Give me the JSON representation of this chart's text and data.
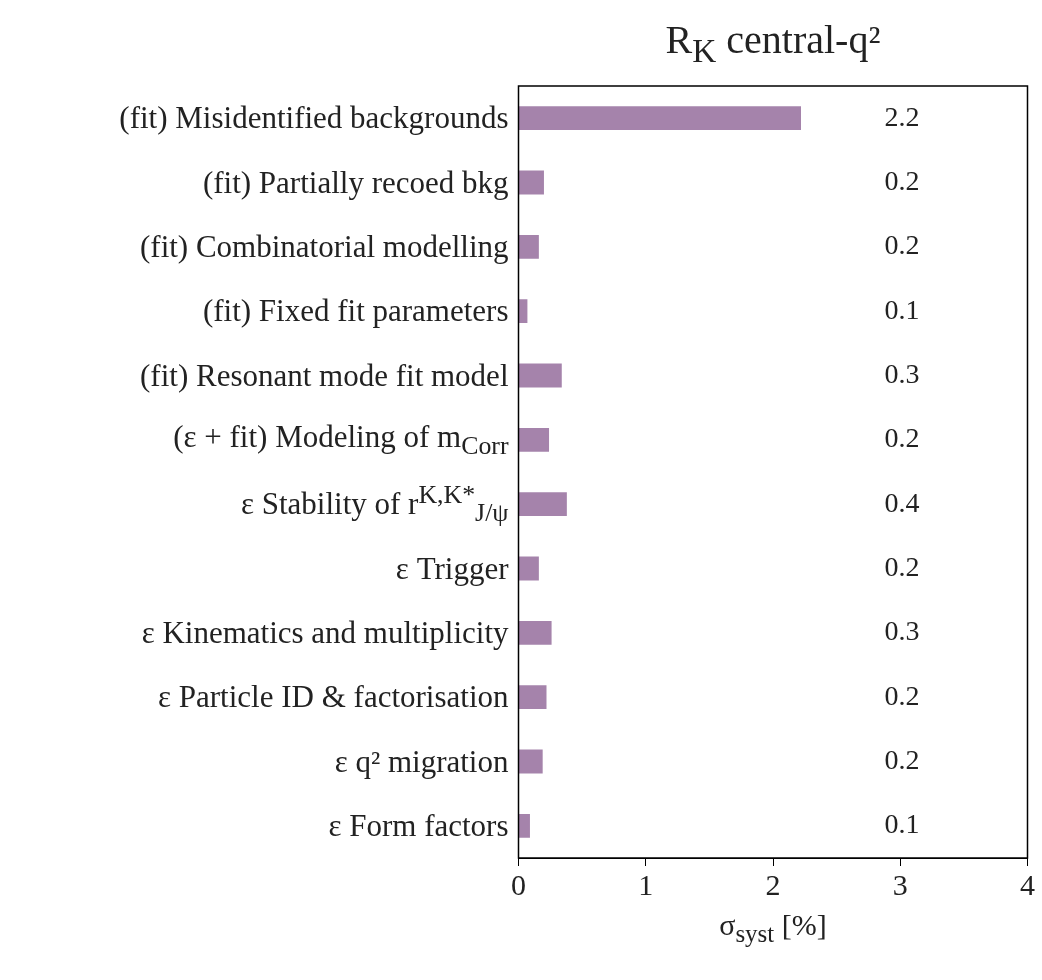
{
  "chart_data": {
    "type": "bar",
    "orientation": "horizontal",
    "title": "R$_{K}$ central-q²",
    "xlabel": "σ$_{syst}$ [%]",
    "categories": [
      "(fit) Misidentified backgrounds",
      "(fit) Partially recoed bkg",
      "(fit) Combinatorial modelling",
      "(fit) Fixed fit parameters",
      "(fit) Resonant mode fit model",
      "(ε + fit) Modeling of m$_{Corr}$",
      "ε Stability of r$^{K,K*}$$_{J/ψ}$",
      "ε Trigger",
      "ε Kinematics and multiplicity",
      "ε Particle ID & factorisation",
      "ε q² migration",
      "ε Form factors"
    ],
    "values": [
      2.22,
      0.2,
      0.16,
      0.07,
      0.34,
      0.24,
      0.38,
      0.16,
      0.26,
      0.22,
      0.19,
      0.09
    ],
    "value_labels": [
      "2.2",
      "0.2",
      "0.2",
      "0.1",
      "0.3",
      "0.2",
      "0.4",
      "0.2",
      "0.3",
      "0.2",
      "0.2",
      "0.1"
    ],
    "color": "#a583ab",
    "xlim": [
      0,
      4
    ],
    "xticks": [
      0,
      1,
      2,
      3,
      4
    ]
  }
}
